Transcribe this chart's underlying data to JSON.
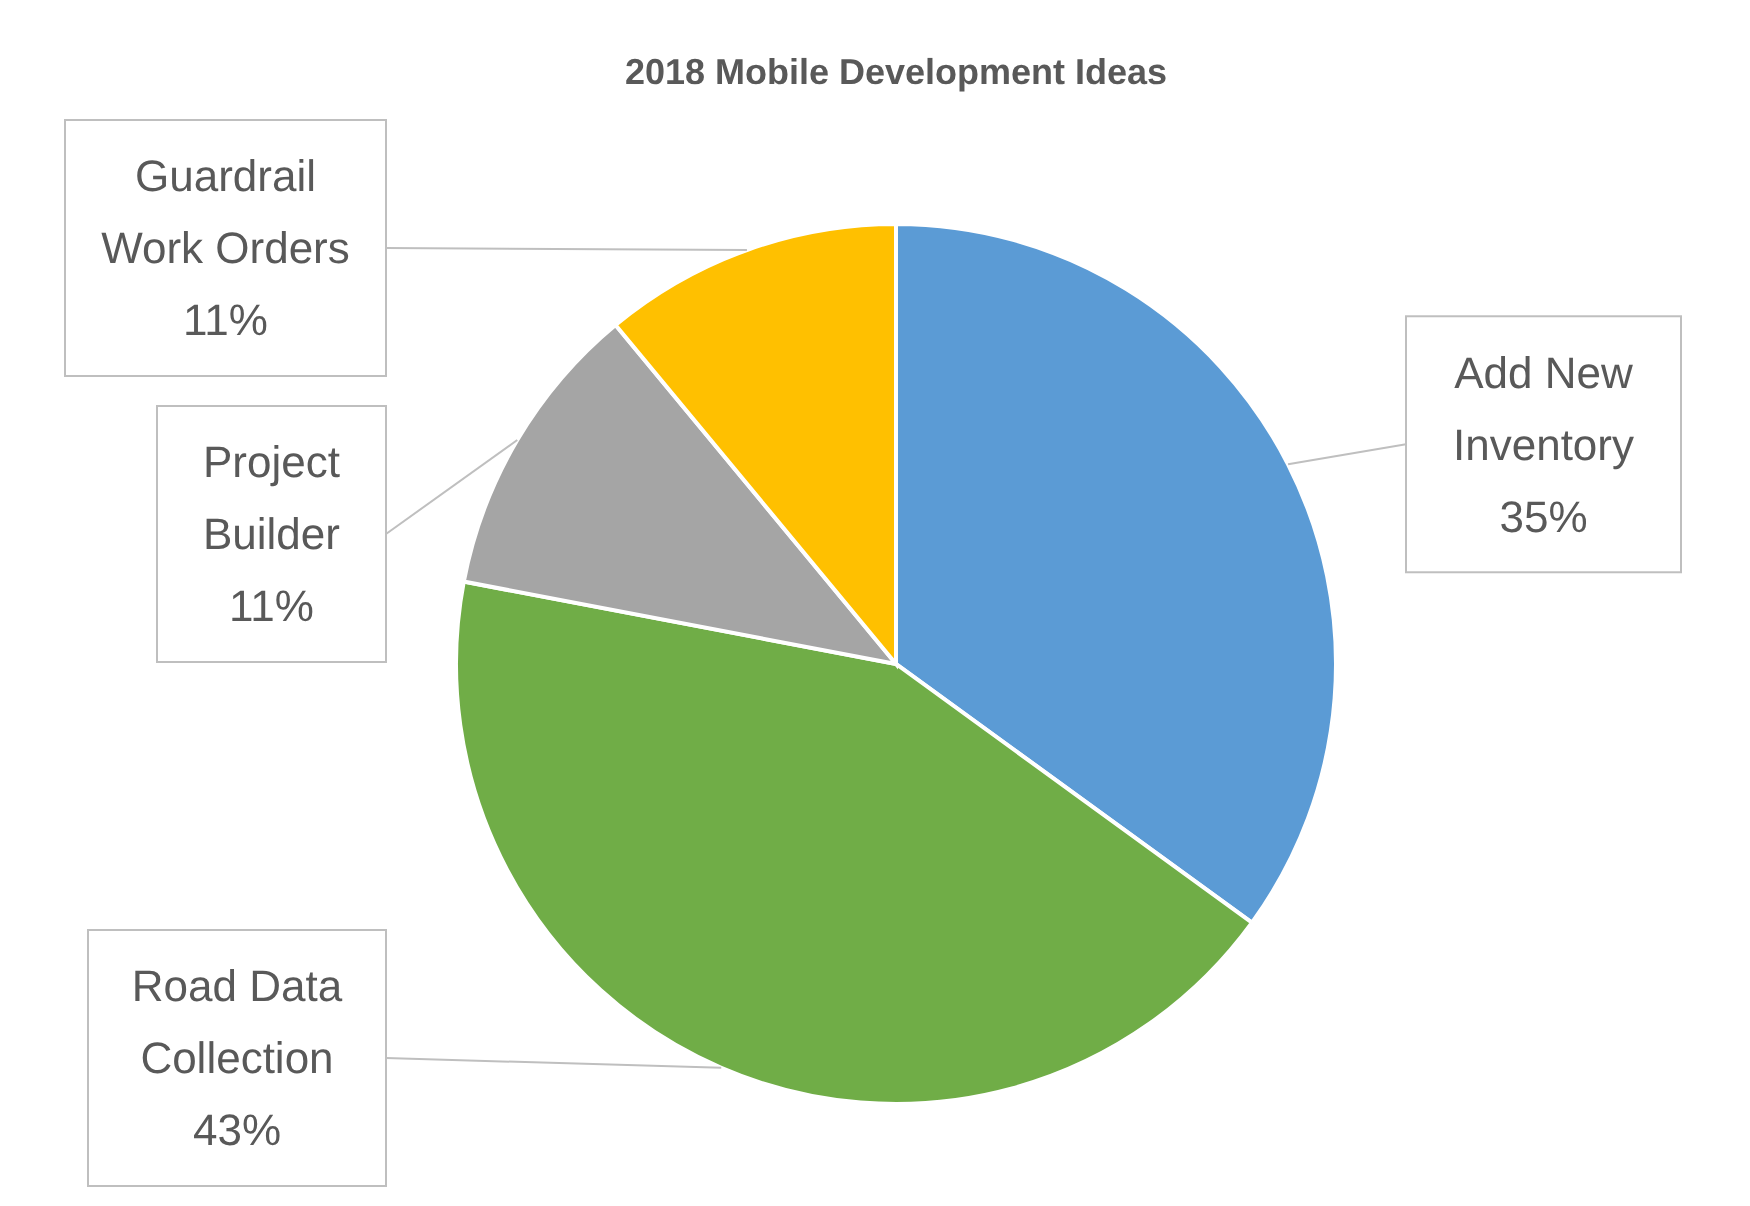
{
  "chart_data": {
    "type": "pie",
    "title": "2018 Mobile Development Ideas",
    "categories": [
      "Add New Inventory",
      "Road Data Collection",
      "Project Builder",
      "Guardrail Work Orders"
    ],
    "values": [
      35,
      43,
      11,
      11
    ],
    "value_labels": [
      "35%",
      "43%",
      "11%",
      "11%"
    ],
    "colors": [
      "#5b9bd5",
      "#70ad47",
      "#a5a5a5",
      "#ffc000"
    ]
  }
}
